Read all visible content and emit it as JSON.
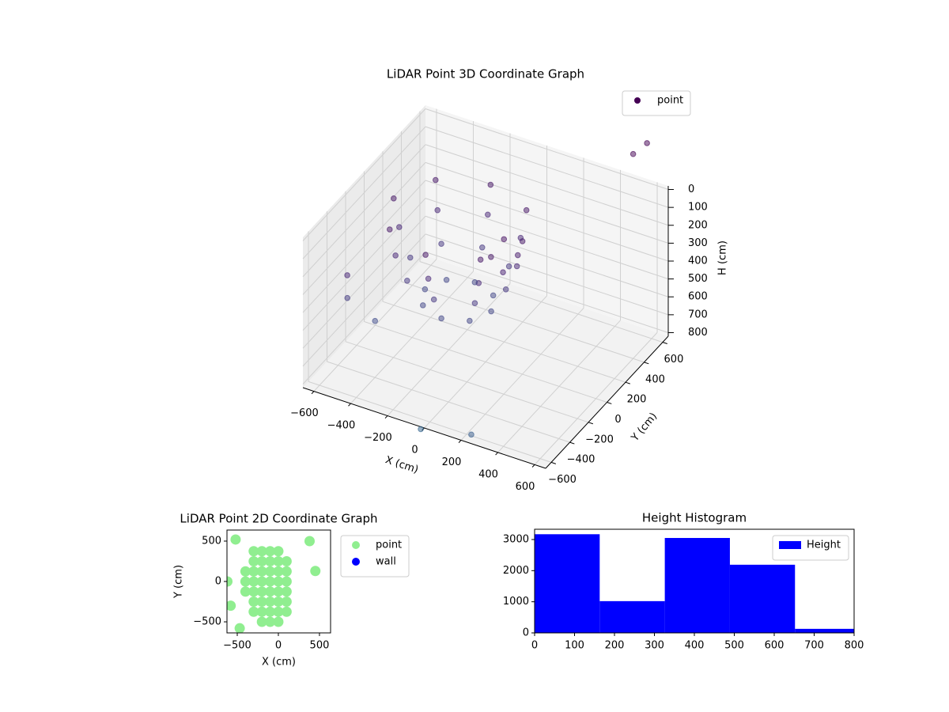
{
  "chart_data": [
    {
      "type": "scatter3d",
      "title": "LiDAR Point 3D Coordinate Graph",
      "xlabel": "X (cm)",
      "ylabel": "Y (cm)",
      "zlabel": "H (cm)",
      "xlim": [
        -660,
        660
      ],
      "ylim": [
        -660,
        660
      ],
      "zlim": [
        820,
        -20
      ],
      "xticks": [
        {
          "value": -600,
          "label": "−600"
        },
        {
          "value": -400,
          "label": "−400"
        },
        {
          "value": -200,
          "label": "−200"
        },
        0,
        200,
        400,
        600
      ],
      "yticks": [
        {
          "value": -600,
          "label": "−600"
        },
        {
          "value": -400,
          "label": "−400"
        },
        {
          "value": -200,
          "label": "−200"
        },
        0,
        200,
        400,
        600
      ],
      "zticks": [
        0,
        100,
        200,
        300,
        400,
        500,
        600,
        700,
        800
      ],
      "grid": true,
      "colormap": "viridis",
      "legend": "upper right",
      "series": [
        {
          "name": "point",
          "color": "#440154",
          "x": [
            150,
            47,
            -200,
            -447,
            -550,
            -447,
            -200,
            47,
            120,
            26,
            -200,
            -426,
            -520,
            -426,
            -200,
            26,
            60,
            -16,
            -200,
            -384,
            -460,
            -384,
            -200,
            -16,
            -20,
            -73,
            -200,
            -327,
            -380,
            -327,
            -200,
            -73,
            100,
            80,
            150,
            120,
            -550,
            -600,
            550,
            600,
            -100,
            200,
            -500
          ],
          "y": [
            100,
            347,
            450,
            347,
            100,
            -147,
            -250,
            -147,
            100,
            326,
            420,
            326,
            100,
            -126,
            -220,
            -126,
            100,
            284,
            360,
            284,
            100,
            -84,
            -160,
            -84,
            100,
            227,
            280,
            227,
            100,
            -27,
            -80,
            -27,
            0,
            -100,
            50,
            -50,
            -400,
            -300,
            500,
            550,
            -500,
            -550,
            -200
          ],
          "z": [
            150,
            150,
            150,
            150,
            150,
            150,
            150,
            150,
            300,
            300,
            300,
            300,
            300,
            300,
            300,
            300,
            450,
            450,
            450,
            450,
            450,
            450,
            450,
            450,
            600,
            600,
            600,
            600,
            600,
            600,
            600,
            600,
            100,
            150,
            200,
            250,
            300,
            500,
            -250,
            -300,
            950,
            850,
            650
          ]
        }
      ]
    },
    {
      "type": "scatter",
      "title": "LiDAR Point 2D Coordinate Graph",
      "xlabel": "X (cm)",
      "ylabel": "Y (cm)",
      "xlim": [
        -625,
        635
      ],
      "ylim": [
        -637,
        637
      ],
      "xticks": [
        {
          "value": -500,
          "label": "−500"
        },
        0,
        500
      ],
      "yticks": [
        {
          "value": -500,
          "label": "−500"
        },
        0,
        500
      ],
      "grid": false,
      "legend": "outside upper right",
      "series": [
        {
          "name": "point",
          "color": "#90ee90",
          "x": [
            -400,
            -400,
            -400,
            -300,
            -300,
            -300,
            -300,
            -300,
            -300,
            -300,
            -200,
            -200,
            -200,
            -200,
            -200,
            -200,
            -200,
            -200,
            -100,
            -100,
            -100,
            -100,
            -100,
            -100,
            -100,
            -100,
            0,
            0,
            0,
            0,
            0,
            0,
            0,
            0,
            100,
            100,
            100,
            100,
            100,
            100,
            -520,
            -620,
            -580,
            -470,
            380,
            450
          ],
          "y": [
            -125,
            0,
            125,
            -375,
            -250,
            -125,
            0,
            125,
            250,
            375,
            -500,
            -375,
            -250,
            -125,
            0,
            125,
            250,
            375,
            -500,
            -375,
            -250,
            -125,
            0,
            125,
            250,
            375,
            -500,
            -375,
            -250,
            -125,
            0,
            125,
            250,
            375,
            -375,
            -250,
            -125,
            0,
            125,
            250,
            520,
            0,
            -300,
            -580,
            500,
            130
          ]
        },
        {
          "name": "wall",
          "color": "#0000ff",
          "x": [],
          "y": []
        }
      ]
    },
    {
      "type": "histogram",
      "title": "Height Histogram",
      "xlim": [
        0,
        800
      ],
      "ylim": [
        0,
        3330
      ],
      "xticks": [
        0,
        100,
        200,
        300,
        400,
        500,
        600,
        700,
        800
      ],
      "yticks": [
        0,
        1000,
        2000,
        3000
      ],
      "grid": false,
      "legend": "upper right",
      "bins": [
        0,
        163,
        326,
        489,
        652,
        815
      ],
      "series": [
        {
          "name": "Height",
          "color": "#0000ff",
          "values": [
            3170,
            1020,
            3050,
            2190,
            130
          ]
        }
      ]
    }
  ]
}
